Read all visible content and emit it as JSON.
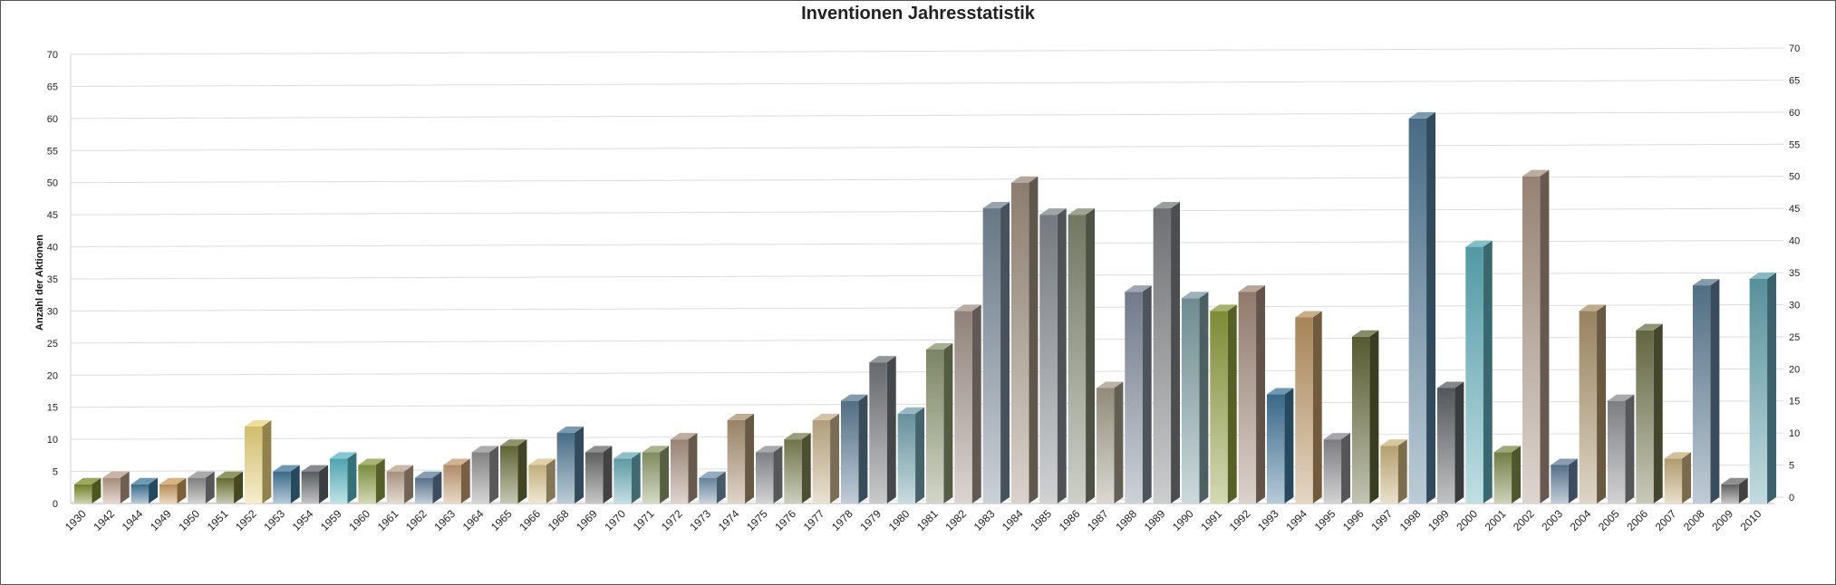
{
  "chart_data": {
    "type": "bar",
    "title": "Inventionen Jahresstatistik",
    "xlabel": "",
    "ylabel": "Anzahl der Aktionen",
    "ylim": [
      0,
      70
    ],
    "y_ticks": [
      0,
      5,
      10,
      15,
      20,
      25,
      30,
      35,
      40,
      45,
      50,
      55,
      60,
      65,
      70
    ],
    "grid": true,
    "legend": "none",
    "categories": [
      "1930",
      "1942",
      "1944",
      "1949",
      "1950",
      "1951",
      "1952",
      "1953",
      "1954",
      "1959",
      "1960",
      "1961",
      "1962",
      "1963",
      "1964",
      "1965",
      "1966",
      "1968",
      "1969",
      "1970",
      "1971",
      "1972",
      "1973",
      "1974",
      "1975",
      "1976",
      "1977",
      "1978",
      "1979",
      "1980",
      "1981",
      "1982",
      "1983",
      "1984",
      "1985",
      "1986",
      "1987",
      "1988",
      "1989",
      "1990",
      "1991",
      "1992",
      "1993",
      "1994",
      "1995",
      "1996",
      "1997",
      "1998",
      "1999",
      "2000",
      "2001",
      "2002",
      "2003",
      "2004",
      "2005",
      "2006",
      "2007",
      "2008",
      "2009",
      "2010"
    ],
    "values": [
      3,
      4,
      3,
      3,
      4,
      4,
      12,
      5,
      5,
      7,
      6,
      5,
      4,
      6,
      8,
      9,
      6,
      11,
      8,
      7,
      8,
      10,
      4,
      13,
      8,
      10,
      13,
      16,
      22,
      14,
      24,
      30,
      46,
      50,
      45,
      45,
      18,
      33,
      46,
      32,
      30,
      33,
      17,
      29,
      10,
      26,
      9,
      60,
      18,
      40,
      8,
      51,
      6,
      30,
      16,
      27,
      7,
      34,
      3,
      35
    ],
    "colors": [
      "#7a8a2a",
      "#b89a88",
      "#3f7598",
      "#c89a5c",
      "#8c8c8c",
      "#6f7332",
      "#e8d27a",
      "#3f7598",
      "#5f6468",
      "#57b5c2",
      "#8a9a42",
      "#b8a08c",
      "#5f7c98",
      "#c49a72",
      "#909090",
      "#6a6e3a",
      "#d4c08a",
      "#4f7894",
      "#6a6a6a",
      "#67aab6",
      "#8d9a6a",
      "#a89080",
      "#6f8fa8",
      "#a89070",
      "#8a8c90",
      "#7a8050",
      "#c4b08a",
      "#5a7a92",
      "#707478",
      "#6fa0ac",
      "#88946e",
      "#a09088",
      "#748494",
      "#9a8a7a",
      "#80868c",
      "#7e846e",
      "#a09a88",
      "#7c8898",
      "#7a7c80",
      "#7a9aa0",
      "#8a9a3a",
      "#a08878",
      "#3f7598",
      "#b89260",
      "#8a8a8e",
      "#5e6434",
      "#c8b07a",
      "#4f7894",
      "#5c6064",
      "#5aaab6",
      "#7e8a4a",
      "#a69080",
      "#5f7c98",
      "#a89068",
      "#8a8c90",
      "#6e7048",
      "#c4ac7a",
      "#5a7a92",
      "#6a6a6a",
      "#60a0ac"
    ]
  }
}
